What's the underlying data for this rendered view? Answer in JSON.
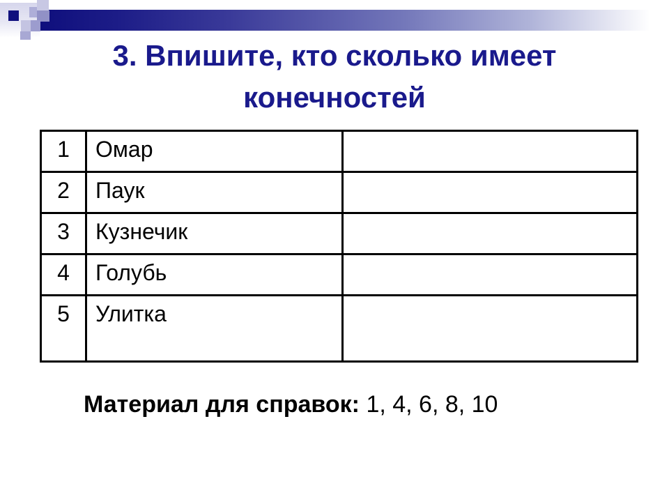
{
  "slide": {
    "title_line1": "3. Впишите, кто сколько имеет",
    "title_line2": "конечностей",
    "table": {
      "rows": [
        {
          "num": "1",
          "name": "Омар",
          "answer": ""
        },
        {
          "num": "2",
          "name": "Паук",
          "answer": ""
        },
        {
          "num": "3",
          "name": "Кузнечик",
          "answer": ""
        },
        {
          "num": "4",
          "name": "Голубь",
          "answer": ""
        },
        {
          "num": "5",
          "name": "Улитка",
          "answer": ""
        }
      ]
    },
    "reference": {
      "label": "Материал для справок:",
      "values": "1, 4, 6, 8, 10"
    },
    "colors": {
      "title_navy": "#1a1a8c",
      "bar_dark_navy": "#0f0f7d",
      "bar_fade_end": "#ffffff",
      "table_border": "#000000",
      "deco_lavender": "#9c9cce"
    }
  }
}
